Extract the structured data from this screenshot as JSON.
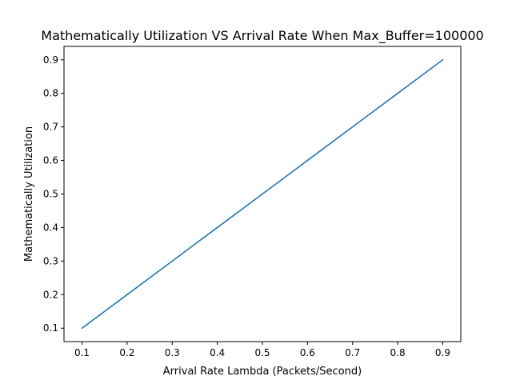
{
  "chart_data": {
    "type": "line",
    "title": "Mathematically Utilization VS Arrival Rate When Max_Buffer=100000",
    "xlabel": "Arrival Rate Lambda (Packets/Second)",
    "ylabel": "Mathematically Utilization",
    "xlim": [
      0.06,
      0.94
    ],
    "ylim": [
      0.06,
      0.94
    ],
    "xticks": [
      0.1,
      0.2,
      0.3,
      0.4,
      0.5,
      0.6,
      0.7,
      0.8,
      0.9
    ],
    "yticks": [
      0.1,
      0.2,
      0.3,
      0.4,
      0.5,
      0.6,
      0.7,
      0.8,
      0.9
    ],
    "xtick_labels": [
      "0.1",
      "0.2",
      "0.3",
      "0.4",
      "0.5",
      "0.6",
      "0.7",
      "0.8",
      "0.9"
    ],
    "ytick_labels": [
      "0.1",
      "0.2",
      "0.3",
      "0.4",
      "0.5",
      "0.6",
      "0.7",
      "0.8",
      "0.9"
    ],
    "grid": false,
    "series": [
      {
        "color": "#1f77b4",
        "x": [
          0.1,
          0.2,
          0.3,
          0.4,
          0.5,
          0.6,
          0.7,
          0.8,
          0.9
        ],
        "y": [
          0.1,
          0.2,
          0.3,
          0.4,
          0.5,
          0.6,
          0.7,
          0.8,
          0.9
        ]
      }
    ]
  }
}
